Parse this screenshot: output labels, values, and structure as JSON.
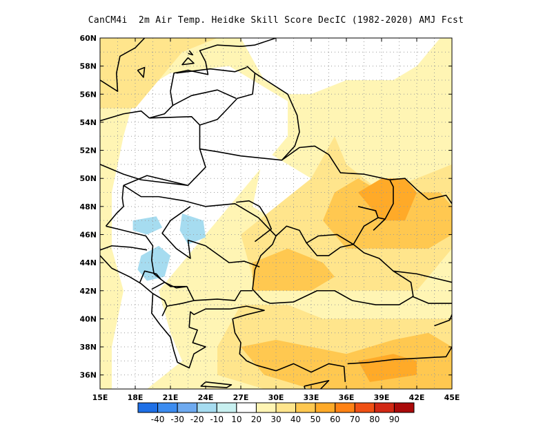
{
  "chart_data": {
    "type": "heatmap",
    "title": "CanCM4i  2m Air Temp. Heidke Skill Score DecIC (1982-2020) AMJ Fcst",
    "x_ticks": [
      "15E",
      "18E",
      "21E",
      "24E",
      "27E",
      "30E",
      "33E",
      "36E",
      "39E",
      "42E",
      "45E"
    ],
    "y_ticks": [
      "36N",
      "38N",
      "40N",
      "42N",
      "44N",
      "46N",
      "48N",
      "50N",
      "52N",
      "54N",
      "56N",
      "58N",
      "60N"
    ],
    "xlim": [
      15,
      45
    ],
    "ylim": [
      35,
      60
    ],
    "grid": true,
    "colorbar": {
      "labels": [
        "-40",
        "-30",
        "-20",
        "-10",
        "10",
        "20",
        "30",
        "40",
        "50",
        "60",
        "70",
        "80",
        "90"
      ],
      "colors": [
        "#1e6fe6",
        "#3c8cf0",
        "#6eaaf0",
        "#a6dcf0",
        "#c8f0f0",
        "#ffffff",
        "#fff5b4",
        "#ffe58c",
        "#ffc850",
        "#ffaa28",
        "#ff8214",
        "#f05014",
        "#d22814",
        "#aa0a0a"
      ]
    },
    "regions": [
      {
        "level": "10-20",
        "color": "#fff5b4",
        "points": [
          [
            15,
            35
          ],
          [
            15,
            60
          ],
          [
            45,
            60
          ],
          [
            45,
            35
          ]
        ]
      },
      {
        "level": "-10-10",
        "color": "#ffffff",
        "points": [
          [
            21,
            57.5
          ],
          [
            26,
            58
          ],
          [
            29,
            56.5
          ],
          [
            31,
            55.5
          ],
          [
            31,
            53
          ],
          [
            29,
            51
          ],
          [
            27,
            49
          ],
          [
            25,
            47
          ],
          [
            23,
            45
          ],
          [
            21,
            43
          ],
          [
            19,
            41
          ],
          [
            17,
            42
          ],
          [
            16,
            45
          ],
          [
            16,
            49
          ],
          [
            17,
            53
          ],
          [
            18,
            56
          ]
        ]
      },
      {
        "level": "-10-10",
        "color": "#ffffff",
        "points": [
          [
            27,
            60
          ],
          [
            29,
            57
          ],
          [
            31,
            56
          ],
          [
            33,
            56
          ],
          [
            36,
            57
          ],
          [
            40,
            57
          ],
          [
            42,
            58
          ],
          [
            44,
            60
          ]
        ]
      },
      {
        "level": "-10-10",
        "color": "#ffffff",
        "points": [
          [
            29,
            52
          ],
          [
            31,
            51
          ],
          [
            33,
            50
          ],
          [
            32,
            48
          ],
          [
            30,
            47
          ],
          [
            28,
            48
          ]
        ]
      },
      {
        "level": "-10-10",
        "color": "#ffffff",
        "points": [
          [
            17,
            42
          ],
          [
            20,
            42
          ],
          [
            21,
            39
          ],
          [
            22,
            37
          ],
          [
            19,
            35
          ],
          [
            16,
            35
          ],
          [
            16,
            38
          ]
        ]
      },
      {
        "level": "20-30",
        "color": "#ffe58c",
        "points": [
          [
            15,
            60
          ],
          [
            15,
            55
          ],
          [
            18,
            55
          ],
          [
            20,
            57
          ],
          [
            22,
            59
          ],
          [
            25,
            60
          ]
        ]
      },
      {
        "level": "20-30",
        "color": "#ffe58c",
        "points": [
          [
            35,
            53
          ],
          [
            36,
            51
          ],
          [
            39,
            49
          ],
          [
            42,
            50
          ],
          [
            45,
            51
          ],
          [
            45,
            45
          ],
          [
            42,
            42
          ],
          [
            38,
            42
          ],
          [
            34,
            42
          ],
          [
            31,
            42
          ],
          [
            28,
            43
          ],
          [
            27,
            46
          ],
          [
            30,
            48
          ],
          [
            33,
            50
          ]
        ]
      },
      {
        "level": "20-30",
        "color": "#ffe58c",
        "points": [
          [
            27,
            41
          ],
          [
            31,
            41
          ],
          [
            34,
            40
          ],
          [
            38,
            40
          ],
          [
            42,
            40
          ],
          [
            45,
            40
          ],
          [
            45,
            35
          ],
          [
            40,
            35
          ],
          [
            34,
            35
          ],
          [
            29,
            35
          ],
          [
            25,
            36
          ],
          [
            25,
            38
          ]
        ]
      },
      {
        "level": "30-40",
        "color": "#ffc850",
        "points": [
          [
            37,
            50
          ],
          [
            39,
            49
          ],
          [
            42,
            49
          ],
          [
            44,
            49
          ],
          [
            45,
            48
          ],
          [
            45,
            46
          ],
          [
            43,
            45
          ],
          [
            40,
            45
          ],
          [
            36,
            45
          ],
          [
            34,
            47
          ],
          [
            35,
            49
          ]
        ]
      },
      {
        "level": "30-40",
        "color": "#ffc850",
        "points": [
          [
            28,
            44
          ],
          [
            31,
            45
          ],
          [
            34,
            44
          ],
          [
            35,
            43
          ],
          [
            33,
            42
          ],
          [
            30,
            42
          ],
          [
            28,
            42
          ]
        ]
      },
      {
        "level": "30-40",
        "color": "#ffc850",
        "points": [
          [
            27,
            38
          ],
          [
            30,
            38.5
          ],
          [
            33,
            38
          ],
          [
            36,
            37.5
          ],
          [
            40,
            38.5
          ],
          [
            43,
            39
          ],
          [
            45,
            38
          ],
          [
            45,
            35
          ],
          [
            41,
            35
          ],
          [
            37,
            35
          ],
          [
            33,
            35
          ],
          [
            29,
            36
          ]
        ]
      },
      {
        "level": "40-50",
        "color": "#ffaa28",
        "points": [
          [
            37,
            49
          ],
          [
            39,
            50
          ],
          [
            41,
            50
          ],
          [
            42,
            49
          ],
          [
            41,
            47
          ],
          [
            39,
            47
          ]
        ]
      },
      {
        "level": "40-50",
        "color": "#ffaa28",
        "points": [
          [
            37,
            37
          ],
          [
            40,
            37.5
          ],
          [
            42,
            37
          ],
          [
            42,
            36
          ],
          [
            38,
            35.5
          ]
        ]
      },
      {
        "level": "-20--10",
        "color": "#a6dcf0",
        "points": [
          [
            22,
            47.5
          ],
          [
            23.8,
            47
          ],
          [
            24,
            45.8
          ],
          [
            22.5,
            45.3
          ],
          [
            21.8,
            46.3
          ]
        ]
      },
      {
        "level": "-20--10",
        "color": "#a6dcf0",
        "points": [
          [
            18.5,
            44.5
          ],
          [
            20,
            45.2
          ],
          [
            21,
            44.5
          ],
          [
            20.5,
            43
          ],
          [
            19,
            42.7
          ],
          [
            18.2,
            43.5
          ]
        ]
      },
      {
        "level": "-20--10",
        "color": "#a6dcf0",
        "points": [
          [
            17.8,
            47
          ],
          [
            19.8,
            47.3
          ],
          [
            20.3,
            46.5
          ],
          [
            19,
            46
          ],
          [
            17.8,
            46.3
          ]
        ]
      }
    ]
  }
}
